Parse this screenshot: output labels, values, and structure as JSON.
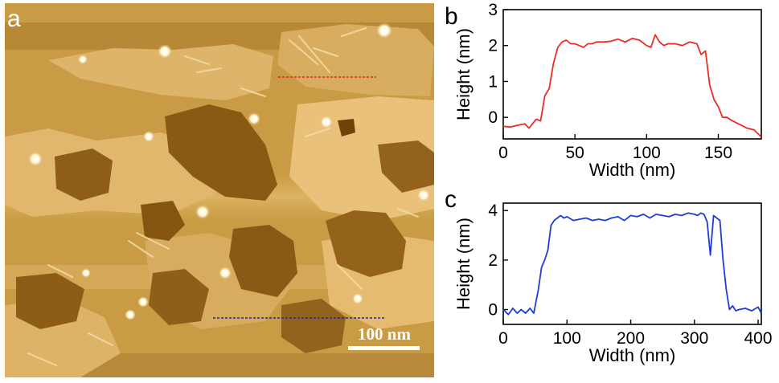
{
  "panels": {
    "a": {
      "letter": "a",
      "scale_bar_label": "100 nm",
      "profile_lines": [
        {
          "name": "upper-profile-line",
          "color": "#e8241f"
        },
        {
          "name": "lower-profile-line",
          "color": "#1f2aa8"
        }
      ]
    },
    "b": {
      "letter": "b"
    },
    "c": {
      "letter": "c"
    }
  },
  "chart_data": [
    {
      "panel": "b",
      "type": "line",
      "title": "",
      "xlabel": "Width (nm)",
      "ylabel": "Height (nm)",
      "xlim": [
        0,
        180
      ],
      "ylim": [
        -0.6,
        3
      ],
      "xticks": [
        0,
        50,
        100,
        150
      ],
      "yticks": [
        0,
        1,
        2,
        3
      ],
      "grid": false,
      "series": [
        {
          "color": "#ee2a24",
          "x": [
            0,
            5,
            10,
            15,
            18,
            20,
            23,
            26,
            29,
            32,
            35,
            38,
            41,
            44,
            47,
            50,
            53,
            56,
            59,
            62,
            65,
            70,
            75,
            80,
            85,
            90,
            95,
            100,
            103,
            106,
            109,
            112,
            115,
            120,
            125,
            130,
            135,
            138,
            141,
            144,
            147,
            150,
            153,
            156,
            160,
            165,
            170,
            175,
            180
          ],
          "y": [
            -0.25,
            -0.27,
            -0.22,
            -0.18,
            -0.3,
            -0.2,
            -0.05,
            -0.1,
            0.6,
            0.8,
            1.5,
            1.95,
            2.1,
            2.15,
            2.05,
            2.05,
            2.0,
            1.95,
            2.05,
            2.05,
            2.1,
            2.1,
            2.12,
            2.18,
            2.1,
            2.2,
            2.15,
            2.0,
            1.95,
            2.3,
            2.1,
            2.0,
            2.05,
            2.05,
            2.0,
            2.1,
            2.05,
            1.75,
            1.85,
            0.9,
            0.5,
            0.3,
            0.0,
            0.0,
            -0.1,
            -0.2,
            -0.3,
            -0.35,
            -0.55
          ]
        }
      ]
    },
    {
      "panel": "c",
      "type": "line",
      "title": "",
      "xlabel": "Width (nm)",
      "ylabel": "Height (nm)",
      "xlim": [
        0,
        405
      ],
      "ylim": [
        -0.6,
        4.3
      ],
      "xticks": [
        0,
        100,
        200,
        300,
        400
      ],
      "yticks": [
        0,
        2,
        4
      ],
      "grid": false,
      "series": [
        {
          "color": "#1f3bdc",
          "x": [
            0,
            8,
            15,
            22,
            28,
            35,
            42,
            48,
            55,
            60,
            65,
            70,
            75,
            80,
            85,
            90,
            95,
            100,
            110,
            120,
            130,
            140,
            150,
            160,
            170,
            180,
            190,
            200,
            210,
            220,
            230,
            240,
            250,
            260,
            270,
            280,
            290,
            300,
            305,
            310,
            315,
            320,
            325,
            330,
            335,
            340,
            345,
            350,
            355,
            360,
            365,
            370,
            380,
            390,
            400,
            405
          ],
          "y": [
            0.0,
            -0.2,
            0.05,
            -0.15,
            0.0,
            -0.15,
            0.05,
            -0.15,
            0.8,
            1.7,
            2.0,
            2.4,
            3.4,
            3.6,
            3.7,
            3.8,
            3.7,
            3.75,
            3.6,
            3.65,
            3.7,
            3.6,
            3.65,
            3.6,
            3.7,
            3.75,
            3.6,
            3.8,
            3.75,
            3.85,
            3.7,
            3.85,
            3.8,
            3.75,
            3.85,
            3.8,
            3.9,
            3.85,
            3.8,
            3.9,
            3.85,
            3.55,
            2.2,
            3.8,
            3.7,
            3.6,
            2.0,
            0.8,
            0.0,
            0.15,
            -0.05,
            0.0,
            0.05,
            -0.05,
            0.1,
            -0.15
          ]
        }
      ]
    }
  ]
}
